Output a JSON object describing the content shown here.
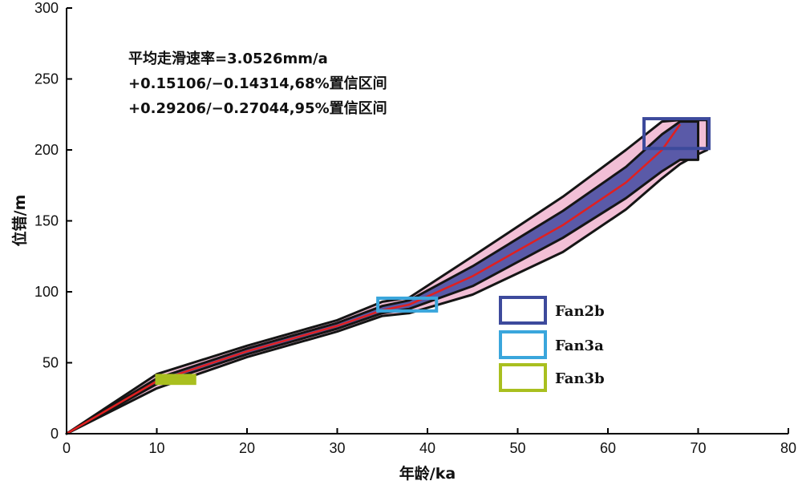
{
  "chart_data": {
    "type": "line",
    "xlabel": "年龄/ka",
    "ylabel": "位错/m",
    "xlim": [
      0,
      80
    ],
    "ylim": [
      0,
      300
    ],
    "x_ticks": [
      "0",
      "10",
      "20",
      "30",
      "40",
      "50",
      "60",
      "70",
      "80"
    ],
    "y_ticks": [
      "0",
      "50",
      "100",
      "150",
      "200",
      "250",
      "300"
    ],
    "grid": false,
    "annotation_lines": [
      "平均走滑速率=3.0526mm/a",
      "+0.15106/−0.14314,68%置信区间",
      "+0.29206/−0.27044,95%置信区间"
    ],
    "series": [
      {
        "name": "",
        "role": "mean",
        "color": "#e02020",
        "x": [
          0,
          10,
          20,
          30,
          35,
          38,
          45,
          55,
          62,
          66,
          68
        ],
        "y": [
          0,
          37,
          58,
          76,
          87,
          91,
          111,
          147,
          177,
          200,
          218
        ]
      },
      {
        "name": "",
        "role": "68% band",
        "color": "#5a5aa8",
        "x": [
          0,
          10,
          20,
          30,
          35,
          38,
          45,
          55,
          62,
          66,
          68,
          70
        ],
        "upper": [
          0,
          39,
          60,
          78,
          90,
          94,
          118,
          157,
          188,
          211,
          220,
          220
        ],
        "lower": [
          0,
          35,
          56,
          74,
          85,
          88,
          104,
          138,
          166,
          185,
          193,
          193
        ]
      },
      {
        "name": "",
        "role": "95% band",
        "color": "#f2bfd6",
        "x": [
          0,
          10,
          20,
          30,
          35,
          38,
          45,
          55,
          62,
          66,
          68,
          70,
          71
        ],
        "upper": [
          0,
          42,
          62,
          80,
          93,
          96,
          125,
          167,
          200,
          220,
          221,
          221,
          221
        ],
        "lower": [
          0,
          32,
          54,
          72,
          83,
          85,
          98,
          128,
          158,
          180,
          190,
          197,
          200
        ]
      }
    ],
    "boxes": [
      {
        "label": "Fan2b",
        "color": "#3d4a9c",
        "x": [
          64,
          71.2
        ],
        "y": [
          201,
          222
        ]
      },
      {
        "label": "Fan3a",
        "color": "#3aa6dc",
        "x": [
          34.5,
          41
        ],
        "y": [
          86.5,
          95.5
        ]
      },
      {
        "label": "Fan3b",
        "color": "#a9bf1f",
        "x": [
          10,
          14.2
        ],
        "y": [
          35.5,
          41
        ],
        "filled": true
      }
    ],
    "legend": {
      "placement": "center-right",
      "entries": [
        {
          "label": "Fan2b",
          "color": "#3d4a9c",
          "filled": false
        },
        {
          "label": "Fan3a",
          "color": "#3aa6dc",
          "filled": false
        },
        {
          "label": "Fan3b",
          "color": "#a9bf1f",
          "filled": false
        }
      ]
    }
  }
}
